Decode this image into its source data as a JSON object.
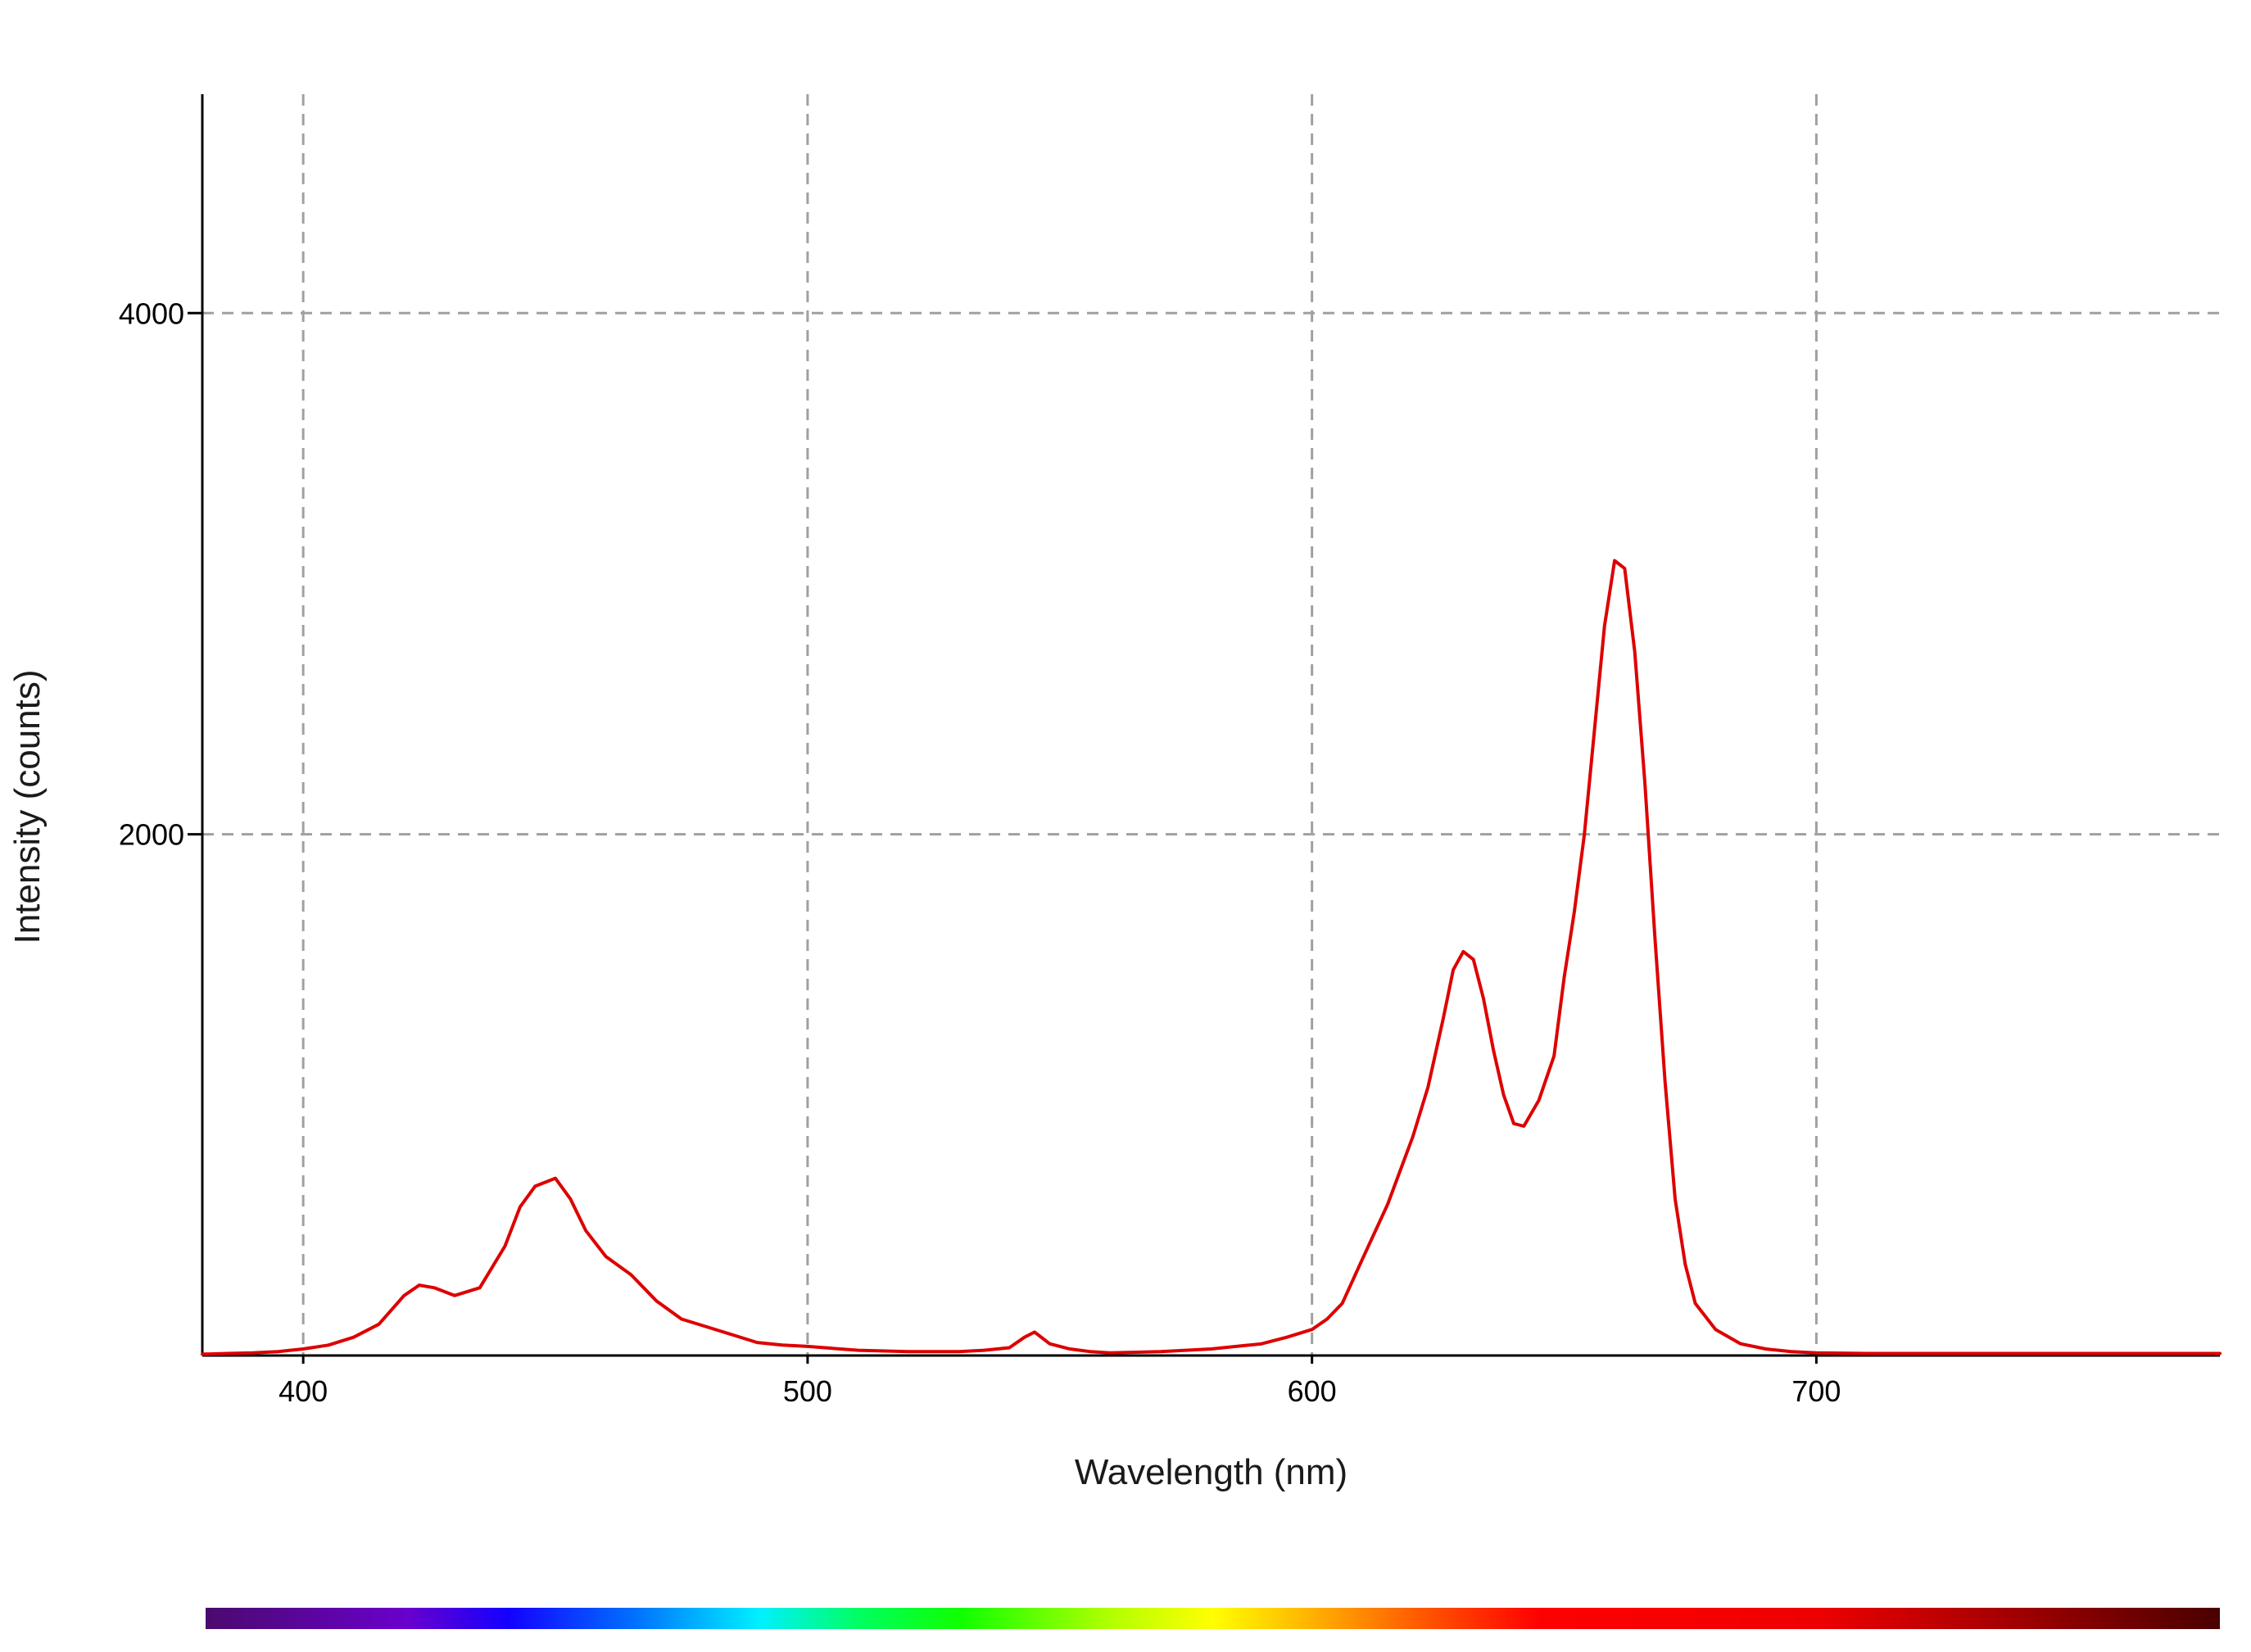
{
  "chart_data": {
    "type": "line",
    "title": "",
    "xlabel": "Wavelength (nm)",
    "ylabel": "Intensity (counts)",
    "xlim": [
      380,
      780
    ],
    "ylim": [
      0,
      4840
    ],
    "x_ticks": [
      400,
      500,
      600,
      700
    ],
    "y_ticks": [
      2000,
      4000
    ],
    "grid": true,
    "legend": "none",
    "spectrum_bar": true,
    "spectrum_stops": [
      {
        "nm": 380,
        "color": "#4b0a6e"
      },
      {
        "nm": 420,
        "color": "#6a00cc"
      },
      {
        "nm": 440,
        "color": "#1400ff"
      },
      {
        "nm": 465,
        "color": "#0070ff"
      },
      {
        "nm": 490,
        "color": "#00f0ff"
      },
      {
        "nm": 510,
        "color": "#00ff60"
      },
      {
        "nm": 530,
        "color": "#10ff00"
      },
      {
        "nm": 560,
        "color": "#b4ff00"
      },
      {
        "nm": 580,
        "color": "#ffff00"
      },
      {
        "nm": 600,
        "color": "#ffb000"
      },
      {
        "nm": 625,
        "color": "#ff4a00"
      },
      {
        "nm": 645,
        "color": "#ff0000"
      },
      {
        "nm": 700,
        "color": "#ee0000"
      },
      {
        "nm": 740,
        "color": "#a00000"
      },
      {
        "nm": 780,
        "color": "#4a0000"
      }
    ],
    "series": [
      {
        "color": "#dd0000",
        "x": [
          380,
          385,
          390,
          395,
          400,
          405,
          410,
          415,
          420,
          423,
          426,
          430,
          435,
          440,
          443,
          446,
          450,
          453,
          456,
          460,
          465,
          470,
          475,
          480,
          485,
          490,
          495,
          500,
          510,
          520,
          530,
          535,
          540,
          543,
          545,
          548,
          552,
          556,
          560,
          570,
          580,
          590,
          595,
          600,
          603,
          606,
          610,
          615,
          620,
          623,
          626,
          628,
          630,
          632,
          634,
          636,
          638,
          640,
          642,
          645,
          648,
          650,
          652,
          654,
          656,
          658,
          660,
          662,
          664,
          666,
          668,
          670,
          672,
          674,
          676,
          680,
          685,
          690,
          695,
          700,
          710,
          720,
          740,
          760,
          780
        ],
        "y": [
          5,
          8,
          10,
          15,
          25,
          40,
          70,
          120,
          230,
          270,
          260,
          230,
          260,
          420,
          570,
          650,
          680,
          600,
          480,
          380,
          310,
          210,
          140,
          110,
          80,
          50,
          40,
          35,
          20,
          15,
          15,
          20,
          30,
          70,
          90,
          45,
          25,
          15,
          10,
          15,
          25,
          45,
          70,
          100,
          140,
          200,
          370,
          580,
          840,
          1030,
          1290,
          1480,
          1550,
          1520,
          1370,
          1170,
          1000,
          890,
          880,
          980,
          1150,
          1450,
          1700,
          2000,
          2400,
          2800,
          3050,
          3020,
          2700,
          2200,
          1600,
          1050,
          600,
          350,
          200,
          100,
          45,
          25,
          15,
          10,
          8,
          8,
          8,
          8,
          8
        ]
      }
    ]
  }
}
